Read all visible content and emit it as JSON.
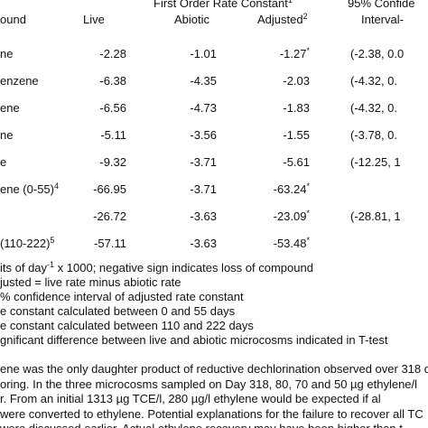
{
  "table": {
    "header": {
      "group": {
        "text": "First Order Rate Constant",
        "note": "1"
      },
      "ci_group": "95% Confide",
      "compound": "ound",
      "live": "Live",
      "abiotic": "Abiotic",
      "adjusted": {
        "text": "Adjusted",
        "note": "2"
      },
      "ci": "Interval-"
    },
    "rows": [
      {
        "compound": "ne",
        "live": "-2.28",
        "abiotic": "-1.01",
        "adjusted": "-1.27",
        "adjusted_note": "*",
        "ci": "(-2.38, 0.0"
      },
      {
        "compound": "enzene",
        "live": "-6.38",
        "abiotic": "-4.35",
        "adjusted": "-2.03",
        "ci": "(-4.32, 0."
      },
      {
        "compound": "ene",
        "live": "-6.56",
        "abiotic": "-4.73",
        "adjusted": "-1.83",
        "ci": "(-4.32, 0."
      },
      {
        "compound": "ne",
        "live": "-5.11",
        "abiotic": "-3.56",
        "adjusted": "-1.55",
        "ci": "(-3.78, 0."
      },
      {
        "compound": "e",
        "live": "-9.32",
        "abiotic": "-3.71",
        "adjusted": "-5.61",
        "ci": "(-12.25, 1"
      },
      {
        "compound": "ene  (0-55)",
        "compound_note": "4",
        "live": "-66.95",
        "abiotic": "-3.71",
        "adjusted": "-63.24",
        "adjusted_note": "*"
      },
      {
        "live": "-26.72",
        "abiotic": "-3.63",
        "adjusted": "-23.09",
        "adjusted_note": "*",
        "ci": "(-28.81, 1"
      },
      {
        "compound": " (110-222)",
        "compound_note": "5",
        "live": "-57.11",
        "abiotic": "-3.63",
        "adjusted": "-53.48",
        "adjusted_note": "*"
      }
    ]
  },
  "footnotes": [
    {
      "text": "its of day",
      "sup": "-1",
      "rest": " x 1000; negative sign indicates loss of compound"
    },
    {
      "text": "justed = live rate minus abiotic rate"
    },
    {
      "text": "% confidence interval of adjusted rate constant"
    },
    {
      "text": "e constant calculated between 0 and 55 days"
    },
    {
      "text": "e constant calculated between 110 and 222 days"
    },
    {
      "text": "gnificant difference between live and abiotic microcosms indicated in T-test"
    }
  ],
  "paragraph": [
    "ene was the only daughter product of reductive dechlorination observed over 318 d",
    "oring. In the three microcosms sampled on Day 318, 80, 70 and 50 µg ethylene/l",
    "r. From an initial 1313 µg TCE/l, 280 µg/l ethylene would be expected if al",
    "were converted to ethylene. Potential explanations for the failure to recover all TC",
    "were discussed earlier. Actual ethylene recovery may have been higher than t"
  ]
}
